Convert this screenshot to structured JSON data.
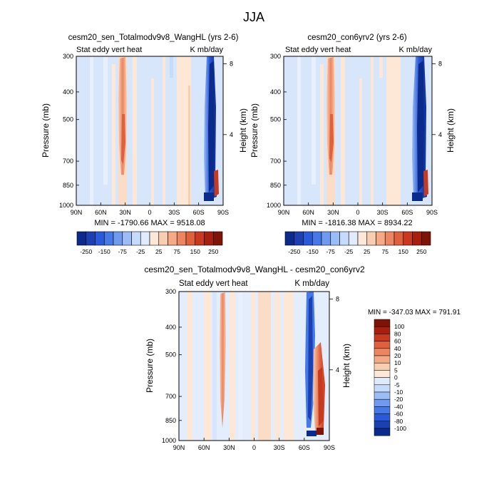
{
  "page_title": "JJA",
  "chart_data": [
    {
      "type": "heatmap",
      "title": "cesm20_sen_Totalmodv9v8_WangHL (yrs 2-6)",
      "left_string": "Stat eddy vert heat",
      "right_string": "K mb/day",
      "ylabel": "Pressure (mb)",
      "y2label": "Height (km)",
      "x_ticks": [
        "90N",
        "60N",
        "30N",
        "0",
        "30S",
        "60S",
        "90S"
      ],
      "y_ticks": [
        "300",
        "400",
        "500",
        "700",
        "850",
        "1000"
      ],
      "y2_ticks": [
        "8",
        "4"
      ],
      "min_max": "MIN = -1790.66  MAX = 9518.08",
      "min": -1790.66,
      "max": 9518.08,
      "colorbar_labels": [
        "-250",
        "-150",
        "-75",
        "-25",
        "25",
        "75",
        "150",
        "250"
      ]
    },
    {
      "type": "heatmap",
      "title": "cesm20_con6yrv2 (yrs 2-6)",
      "left_string": "Stat eddy vert heat",
      "right_string": "K mb/day",
      "ylabel": "Pressure (mb)",
      "y2label": "Height (km)",
      "x_ticks": [
        "90N",
        "60N",
        "30N",
        "0",
        "30S",
        "60S",
        "90S"
      ],
      "y_ticks": [
        "300",
        "400",
        "500",
        "700",
        "850",
        "1000"
      ],
      "y2_ticks": [
        "8",
        "4"
      ],
      "min_max": "MIN = -1816.38  MAX = 8934.22",
      "min": -1816.38,
      "max": 8934.22,
      "colorbar_labels": [
        "-250",
        "-150",
        "-75",
        "-25",
        "25",
        "75",
        "150",
        "250"
      ]
    },
    {
      "type": "heatmap",
      "title": "cesm20_sen_Totalmodv9v8_WangHL - cesm20_con6yrv2",
      "left_string": "Stat eddy vert heat",
      "right_string": "K mb/day",
      "ylabel": "Pressure (mb)",
      "y2label": "Height (km)",
      "x_ticks": [
        "90N",
        "60N",
        "30N",
        "0",
        "30S",
        "60S",
        "90S"
      ],
      "y_ticks": [
        "300",
        "400",
        "500",
        "700",
        "850",
        "1000"
      ],
      "y2_ticks": [
        "8",
        "4"
      ],
      "min_max": "MIN = -347.03  MAX = 791.91",
      "min": -347.03,
      "max": 791.91,
      "colorbar_labels": [
        "100",
        "80",
        "60",
        "40",
        "20",
        "10",
        "5",
        "0",
        "-5",
        "-10",
        "-20",
        "-40",
        "-60",
        "-80",
        "-100"
      ]
    }
  ],
  "palette": [
    "#0a2a8c",
    "#1a40b4",
    "#2a5ad8",
    "#4678e6",
    "#6f9af0",
    "#9cbcf6",
    "#c4dbfb",
    "#e0ecfd",
    "#fde8d8",
    "#f9cdb0",
    "#f4aa86",
    "#ed8560",
    "#e0603d",
    "#c83a1f",
    "#a81f10",
    "#7e1408"
  ]
}
